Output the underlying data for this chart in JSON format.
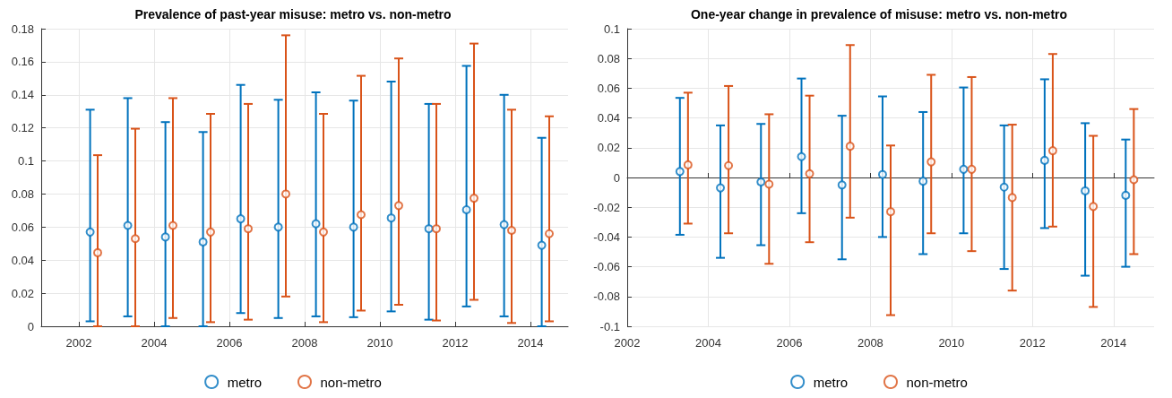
{
  "chart_data": [
    {
      "type": "scatter",
      "title": "Prevalence of past-year misuse: metro vs. non-metro",
      "marker": "circle",
      "grid": true,
      "legend": "bottom",
      "xlim": [
        2001,
        2015
      ],
      "xticks": [
        2002,
        2004,
        2006,
        2008,
        2010,
        2012,
        2014
      ],
      "ylim": [
        0,
        0.18
      ],
      "yticks": [
        0,
        0.02,
        0.04,
        0.06,
        0.08,
        0.1,
        0.12,
        0.14,
        0.16,
        0.18
      ],
      "series": [
        {
          "name": "metro",
          "color": "#0072bd",
          "x": [
            2002.3,
            2003.3,
            2004.3,
            2005.3,
            2006.3,
            2007.3,
            2008.3,
            2009.3,
            2010.3,
            2011.3,
            2012.3,
            2013.3,
            2014.3
          ],
          "values": [
            0.057,
            0.061,
            0.054,
            0.051,
            0.065,
            0.06,
            0.062,
            0.06,
            0.0655,
            0.059,
            0.0705,
            0.0615,
            0.049
          ],
          "errors": [
            [
              0.003,
              0.131
            ],
            [
              0.006,
              0.138
            ],
            [
              0,
              0.1235
            ],
            [
              0,
              0.1175
            ],
            [
              0.008,
              0.146
            ],
            [
              0.005,
              0.137
            ],
            [
              0.006,
              0.1415
            ],
            [
              0.0055,
              0.1365
            ],
            [
              0.009,
              0.148
            ],
            [
              0.004,
              0.1345
            ],
            [
              0.012,
              0.1575
            ],
            [
              0.006,
              0.14
            ],
            [
              0,
              0.114
            ]
          ]
        },
        {
          "name": "non-metro",
          "color": "#d95319",
          "x": [
            2002.5,
            2003.5,
            2004.5,
            2005.5,
            2006.5,
            2007.5,
            2008.5,
            2009.5,
            2010.5,
            2011.5,
            2012.5,
            2013.5,
            2014.5
          ],
          "values": [
            0.0445,
            0.053,
            0.061,
            0.057,
            0.059,
            0.08,
            0.057,
            0.0675,
            0.073,
            0.059,
            0.0775,
            0.058,
            0.056
          ],
          "errors": [
            [
              0,
              0.1035
            ],
            [
              0,
              0.1195
            ],
            [
              0.005,
              0.138
            ],
            [
              0.0025,
              0.1285
            ],
            [
              0.004,
              0.1345
            ],
            [
              0.018,
              0.176
            ],
            [
              0.0025,
              0.1285
            ],
            [
              0.0095,
              0.1515
            ],
            [
              0.013,
              0.162
            ],
            [
              0.0035,
              0.1345
            ],
            [
              0.016,
              0.171
            ],
            [
              0.002,
              0.131
            ],
            [
              0.003,
              0.127
            ]
          ]
        }
      ]
    },
    {
      "type": "scatter",
      "title": "One-year change in prevalence of misuse: metro vs. non-metro",
      "marker": "circle",
      "grid": true,
      "legend": "bottom",
      "xlim": [
        2002,
        2015
      ],
      "xticks": [
        2002,
        2004,
        2006,
        2008,
        2010,
        2012,
        2014
      ],
      "ylim": [
        -0.1,
        0.1
      ],
      "yticks": [
        -0.1,
        -0.08,
        -0.06,
        -0.04,
        -0.02,
        0,
        0.02,
        0.04,
        0.06,
        0.08,
        0.1
      ],
      "series": [
        {
          "name": "metro",
          "color": "#0072bd",
          "x": [
            2003.3,
            2004.3,
            2005.3,
            2006.3,
            2007.3,
            2008.3,
            2009.3,
            2010.3,
            2011.3,
            2012.3,
            2013.3,
            2014.3
          ],
          "values": [
            0.004,
            -0.007,
            -0.003,
            0.014,
            -0.005,
            0.002,
            -0.0025,
            0.0055,
            -0.0065,
            0.0115,
            -0.009,
            -0.012
          ],
          "errors": [
            [
              -0.0385,
              0.0535
            ],
            [
              -0.054,
              0.035
            ],
            [
              -0.0455,
              0.036
            ],
            [
              -0.024,
              0.0665
            ],
            [
              -0.055,
              0.0415
            ],
            [
              -0.04,
              0.0545
            ],
            [
              -0.0515,
              0.044
            ],
            [
              -0.0375,
              0.0605
            ],
            [
              -0.0615,
              0.035
            ],
            [
              -0.034,
              0.066
            ],
            [
              -0.066,
              0.0365
            ],
            [
              -0.06,
              0.0255
            ]
          ]
        },
        {
          "name": "non-metro",
          "color": "#d95319",
          "x": [
            2003.5,
            2004.5,
            2005.5,
            2006.5,
            2007.5,
            2008.5,
            2009.5,
            2010.5,
            2011.5,
            2012.5,
            2013.5,
            2014.5
          ],
          "values": [
            0.0085,
            0.008,
            -0.0045,
            0.0025,
            0.021,
            -0.023,
            0.0105,
            0.0055,
            -0.0135,
            0.018,
            -0.0195,
            -0.0015
          ],
          "errors": [
            [
              -0.031,
              0.057
            ],
            [
              -0.0375,
              0.0615
            ],
            [
              -0.058,
              0.0425
            ],
            [
              -0.0435,
              0.055
            ],
            [
              -0.027,
              0.089
            ],
            [
              -0.0925,
              0.0215
            ],
            [
              -0.0375,
              0.069
            ],
            [
              -0.0495,
              0.0675
            ],
            [
              -0.076,
              0.0355
            ],
            [
              -0.033,
              0.083
            ],
            [
              -0.087,
              0.028
            ],
            [
              -0.0515,
              0.046
            ]
          ]
        }
      ]
    }
  ]
}
